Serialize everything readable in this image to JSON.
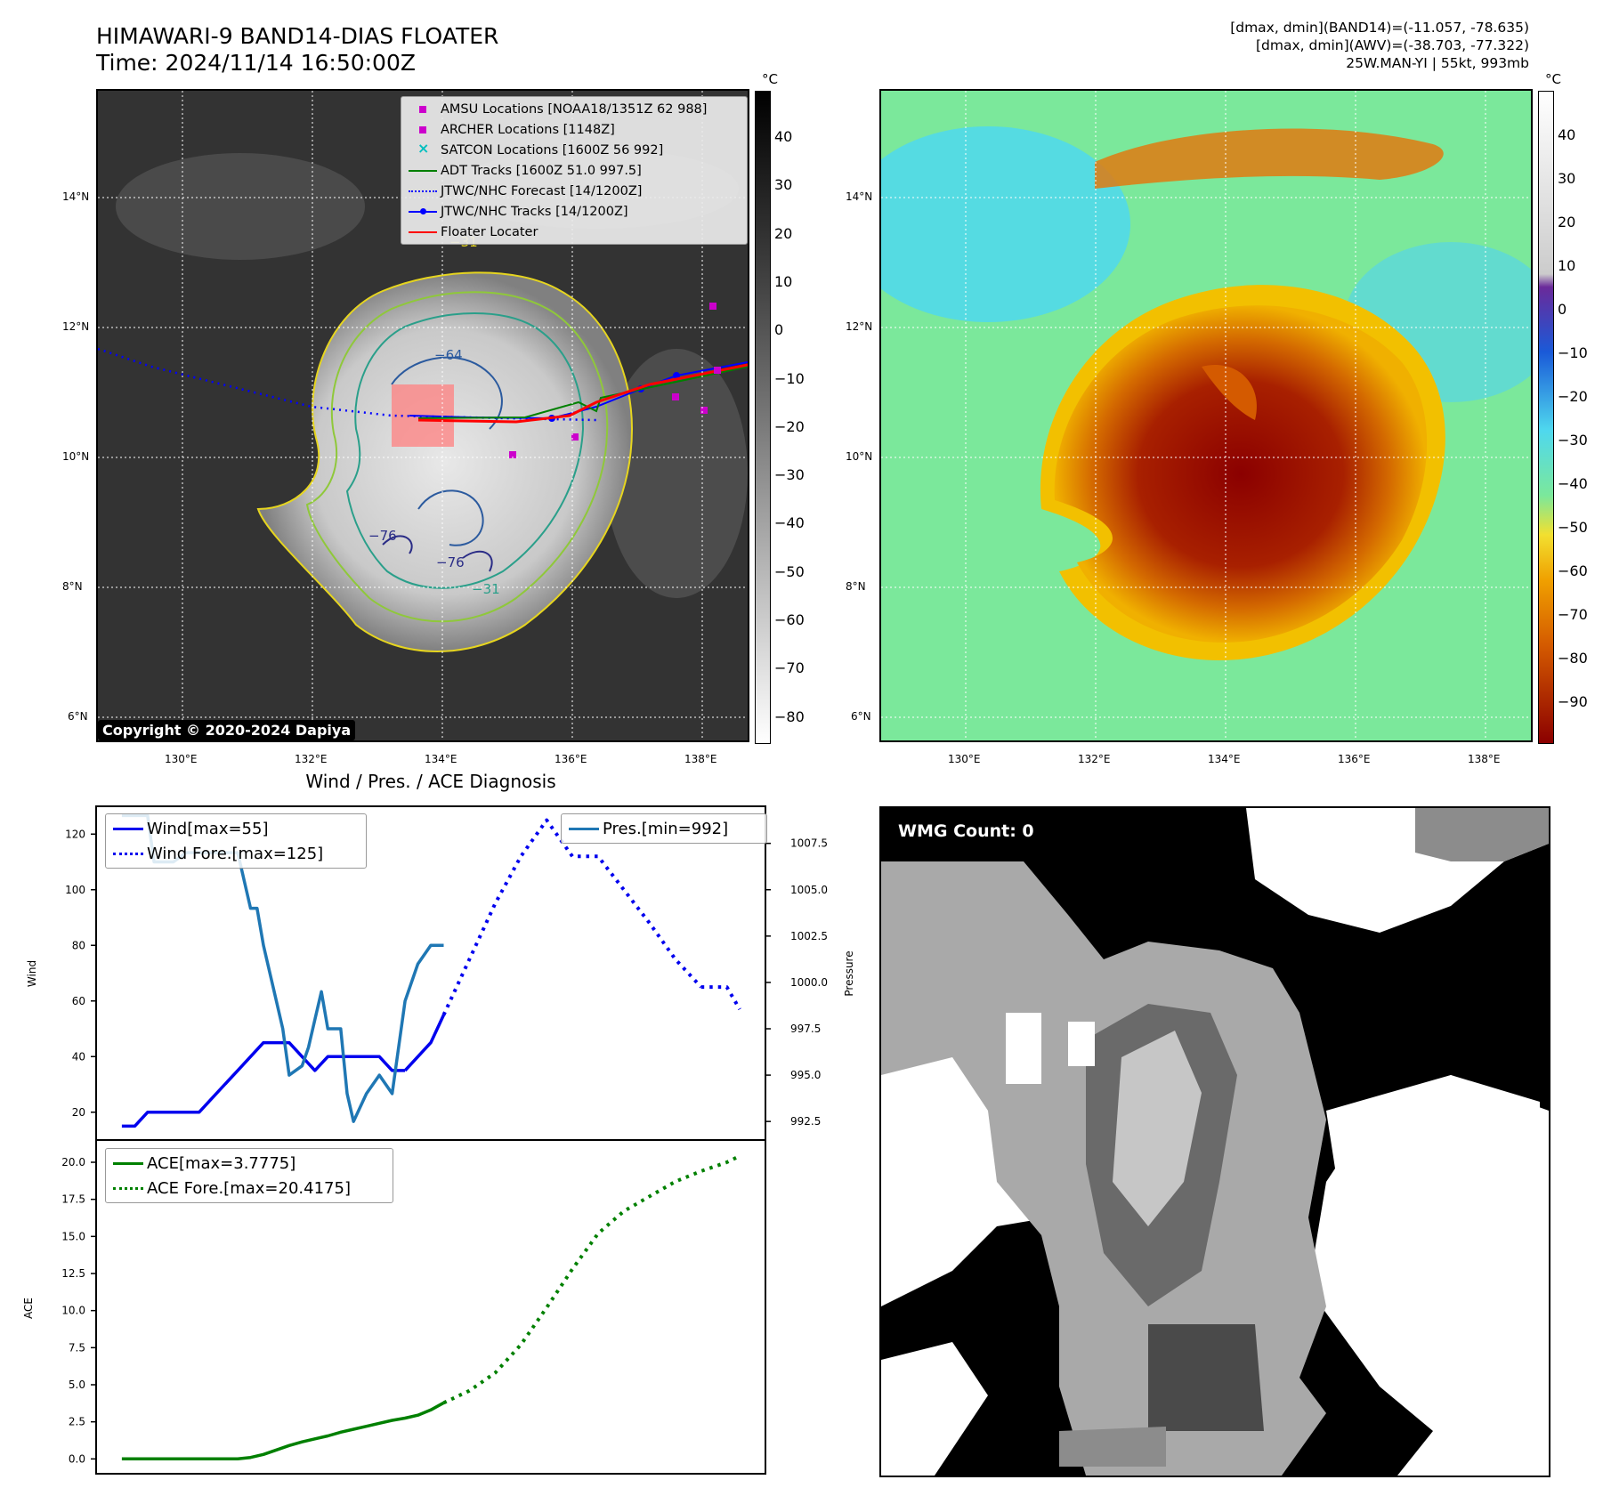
{
  "header": {
    "title_line1": "HIMAWARI-9 BAND14-DIAS FLOATER",
    "title_line2": "Time: 2024/11/14 16:50:00Z",
    "info_line1": "[dmax, dmin](BAND14)=(-11.057, -78.635)",
    "info_line2": "[dmax, dmin](AWV)=(-38.703, -77.322)",
    "info_line3": "25W.MAN-YI | 55kt, 993mb"
  },
  "map_axes": {
    "lon_labels": [
      "130°E",
      "132°E",
      "134°E",
      "136°E",
      "138°E"
    ],
    "lat_labels": [
      "14°N",
      "12°N",
      "10°N",
      "8°N",
      "6°N"
    ],
    "unit": "°C"
  },
  "ir_panel": {
    "legend": [
      {
        "label": "AMSU Locations [NOAA18/1351Z 62 988]",
        "symbol": "magenta-square-icon",
        "color": "#cc00cc"
      },
      {
        "label": "ARCHER Locations [1148Z]",
        "symbol": "magenta-square-icon",
        "color": "#cc00cc"
      },
      {
        "label": "SATCON Locations [1600Z 56 992]",
        "symbol": "cyan-x-icon",
        "color": "#00bfbf"
      },
      {
        "label": "ADT Tracks [1600Z 51.0 997.5]",
        "symbol": "green-line-icon",
        "color": "#008000"
      },
      {
        "label": "JTWC/NHC Forecast [14/1200Z]",
        "symbol": "blue-dotted-line-icon",
        "color": "#0000ff"
      },
      {
        "label": "JTWC/NHC Tracks [14/1200Z]",
        "symbol": "blue-line-dot-icon",
        "color": "#0000ff"
      },
      {
        "label": "Floater Locater",
        "symbol": "red-line-icon",
        "color": "#ff0000"
      }
    ],
    "copyright": "Copyright © 2020-2024 Dapiya",
    "colorbar_ticks": [
      "40",
      "30",
      "20",
      "10",
      "0",
      "−10",
      "−20",
      "−30",
      "−40",
      "−50",
      "−60",
      "−70",
      "−80"
    ],
    "contour_labels": [
      "−31",
      "−64",
      "−76",
      "−76",
      "−31"
    ]
  },
  "awv_panel": {
    "colorbar_ticks": [
      "40",
      "30",
      "20",
      "10",
      "0",
      "−10",
      "−20",
      "−30",
      "−40",
      "−50",
      "−60",
      "−70",
      "−80",
      "−90"
    ]
  },
  "diagnosis": {
    "title": "Wind / Pres. / ACE Diagnosis",
    "wind_ylabel": "Wind",
    "pressure_ylabel": "Pressure",
    "ace_ylabel": "ACE",
    "legend_wind": "Wind[max=55]",
    "legend_wind_fore": "Wind Fore.[max=125]",
    "legend_pres": "Pres.[min=992]",
    "legend_ace": "ACE[max=3.7775]",
    "legend_ace_fore": "ACE Fore.[max=20.4175]"
  },
  "wmg": {
    "label": "WMG Count: 0"
  },
  "chart_data": [
    {
      "type": "line",
      "title": "Wind / Pres. / ACE Diagnosis",
      "ylabel": "Wind",
      "ylim": [
        10,
        130
      ],
      "yticks": [
        20,
        40,
        60,
        80,
        100,
        120
      ],
      "series": [
        {
          "name": "Wind[max=55]",
          "color": "#0000ee",
          "style": "solid",
          "x": [
            0,
            1,
            2,
            3,
            4,
            5,
            6,
            7,
            8,
            9,
            10,
            11,
            12,
            13,
            14,
            15,
            16,
            17,
            18,
            19,
            20,
            21,
            22
          ],
          "values": [
            15,
            15,
            20,
            20,
            20,
            20,
            20,
            25,
            30,
            35,
            40,
            45,
            45,
            45,
            40,
            35,
            40,
            40,
            40,
            40,
            40,
            35,
            35
          ]
        },
        {
          "name": "Wind[max=55]",
          "color": "#0000ee",
          "style": "solid",
          "x": [
            22,
            23,
            24,
            25
          ],
          "values": [
            35,
            40,
            45,
            55
          ]
        },
        {
          "name": "Wind Fore.[max=125]",
          "color": "#0000ee",
          "style": "dotted",
          "x": [
            25,
            27,
            29,
            31,
            33,
            35,
            37,
            39,
            41,
            43,
            45
          ],
          "values": [
            55,
            75,
            95,
            112,
            125,
            112,
            112,
            100,
            88,
            75,
            65
          ]
        },
        {
          "name": "Wind Fore.[max=125]",
          "color": "#0000ee",
          "style": "dotted",
          "x": [
            45,
            47,
            48
          ],
          "values": [
            65,
            65,
            57
          ]
        }
      ]
    },
    {
      "type": "line",
      "ylabel": "Pressure",
      "ylim": [
        991.5,
        1009.5
      ],
      "yticks": [
        992.5,
        995.0,
        997.5,
        1000.0,
        1002.5,
        1005.0,
        1007.5
      ],
      "series": [
        {
          "name": "Pres.[min=992]",
          "color": "#1f77b4",
          "style": "solid",
          "x": [
            0,
            1,
            2,
            2.5,
            3,
            4,
            5,
            6,
            7,
            8,
            8.5,
            9,
            10,
            10.5,
            11,
            12,
            12.5,
            13,
            14,
            14.5,
            15,
            15.5,
            16,
            17,
            17.5,
            18,
            19,
            20,
            21,
            22,
            23,
            24,
            24.5,
            25
          ],
          "values": [
            1009,
            1009,
            1009,
            1006.5,
            1006.5,
            1006.5,
            1007,
            1007,
            1007,
            1007,
            1007,
            1007,
            1004,
            1004,
            1002,
            999,
            997.5,
            995,
            995.5,
            996.5,
            998,
            999.5,
            997.5,
            997.5,
            994,
            992.5,
            994,
            995,
            994,
            999,
            1001,
            1002,
            1002,
            1002
          ]
        }
      ]
    },
    {
      "type": "line",
      "ylabel": "ACE",
      "ylim": [
        -1.0,
        21.5
      ],
      "yticks": [
        0.0,
        2.5,
        5.0,
        7.5,
        10.0,
        12.5,
        15.0,
        17.5,
        20.0
      ],
      "series": [
        {
          "name": "ACE[max=3.7775]",
          "color": "#008000",
          "style": "solid",
          "x": [
            0,
            2,
            4,
            6,
            8,
            9,
            10,
            11,
            12,
            13,
            14,
            15,
            16,
            17,
            18,
            19,
            20,
            21,
            22,
            23,
            24,
            25
          ],
          "values": [
            0,
            0,
            0,
            0,
            0,
            0,
            0.1,
            0.3,
            0.6,
            0.9,
            1.15,
            1.35,
            1.55,
            1.8,
            2.0,
            2.2,
            2.4,
            2.6,
            2.75,
            2.95,
            3.3,
            3.78
          ]
        },
        {
          "name": "ACE Fore.[max=20.4175]",
          "color": "#008000",
          "style": "dotted",
          "x": [
            25,
            27,
            29,
            31,
            33,
            35,
            37,
            39,
            41,
            43,
            45,
            47,
            48
          ],
          "values": [
            3.78,
            4.6,
            5.8,
            7.7,
            10.2,
            12.8,
            15.2,
            16.7,
            17.7,
            18.7,
            19.4,
            20.0,
            20.42
          ]
        }
      ]
    }
  ]
}
